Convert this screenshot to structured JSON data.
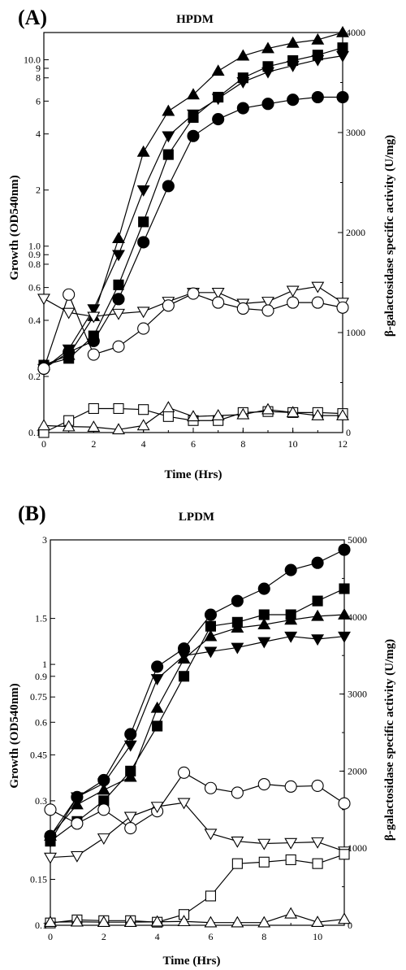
{
  "chart_data": [
    {
      "type": "line",
      "panel_label": "(A)",
      "title": "HPDM",
      "xlabel": "Time (Hrs)",
      "ylabel_left": "Growth (OD540nm)",
      "ylabel_right": "β-galactosidase specific activity (U/mg)",
      "left_scale": "log",
      "xlim": [
        0,
        12
      ],
      "ylim_left": [
        0.1,
        14
      ],
      "ylim_right": [
        0,
        4000
      ],
      "x_ticks": [
        "0",
        "2",
        "4",
        "6",
        "8",
        "10",
        "12"
      ],
      "y_ticks_left": [
        {
          "v": 0.1,
          "label": "0.1"
        },
        {
          "v": 0.2,
          "label": "0.2"
        },
        {
          "v": 0.4,
          "label": "0.4"
        },
        {
          "v": 0.6,
          "label": "0.6"
        },
        {
          "v": 0.8,
          "label": "0.8"
        },
        {
          "v": 0.9,
          "label": "0.9"
        },
        {
          "v": 1.0,
          "label": "1.0"
        },
        {
          "v": 2,
          "label": "2"
        },
        {
          "v": 4,
          "label": "4"
        },
        {
          "v": 6,
          "label": "6"
        },
        {
          "v": 8,
          "label": "8"
        },
        {
          "v": 9,
          "label": "9"
        },
        {
          "v": 10,
          "label": "10.0"
        }
      ],
      "y_ticks_right": [
        "0",
        "1000",
        "2000",
        "3000",
        "4000"
      ],
      "grid": false,
      "series": [
        {
          "marker": "triangle-up",
          "filled": true,
          "axis": "left",
          "x": [
            0,
            1,
            2,
            3,
            4,
            5,
            6,
            7,
            8,
            9,
            10,
            11,
            12
          ],
          "values": [
            0.23,
            0.26,
            0.42,
            1.1,
            3.2,
            5.3,
            6.5,
            8.7,
            10.5,
            11.5,
            12.3,
            12.8,
            14
          ]
        },
        {
          "marker": "square",
          "filled": true,
          "axis": "left",
          "x": [
            0,
            1,
            2,
            3,
            4,
            5,
            6,
            7,
            8,
            9,
            10,
            11,
            12
          ],
          "values": [
            0.23,
            0.25,
            0.33,
            0.62,
            1.35,
            3.1,
            4.9,
            6.3,
            8.0,
            9.2,
            9.9,
            10.6,
            11.6
          ]
        },
        {
          "marker": "triangle-down",
          "filled": true,
          "axis": "left",
          "x": [
            0,
            1,
            2,
            3,
            4,
            5,
            6,
            7,
            8,
            9,
            10,
            11,
            12
          ],
          "values": [
            0.22,
            0.28,
            0.46,
            0.9,
            2.0,
            3.9,
            5.1,
            6.2,
            7.6,
            8.6,
            9.3,
            10.0,
            10.5
          ]
        },
        {
          "marker": "circle",
          "filled": true,
          "axis": "left",
          "x": [
            0,
            1,
            2,
            3,
            4,
            5,
            6,
            7,
            8,
            9,
            10,
            11,
            12
          ],
          "values": [
            0.22,
            0.27,
            0.31,
            0.52,
            1.05,
            2.1,
            3.9,
            4.8,
            5.5,
            5.8,
            6.1,
            6.3,
            6.3
          ]
        },
        {
          "marker": "triangle-down",
          "filled": false,
          "axis": "right",
          "x": [
            0,
            1,
            2,
            3,
            4,
            5,
            6,
            7,
            8,
            9,
            10,
            11,
            12
          ],
          "values": [
            1340,
            1200,
            1160,
            1190,
            1210,
            1310,
            1400,
            1400,
            1290,
            1310,
            1420,
            1460,
            1300
          ]
        },
        {
          "marker": "circle",
          "filled": false,
          "axis": "right",
          "x": [
            0,
            1,
            2,
            3,
            4,
            5,
            6,
            7,
            8,
            9,
            10,
            11,
            12
          ],
          "values": [
            640,
            1380,
            780,
            860,
            1040,
            1270,
            1390,
            1300,
            1240,
            1220,
            1300,
            1300,
            1250
          ]
        },
        {
          "marker": "square",
          "filled": false,
          "axis": "right",
          "x": [
            0,
            1,
            2,
            3,
            4,
            5,
            6,
            7,
            8,
            9,
            10,
            11,
            12
          ],
          "values": [
            0,
            120,
            240,
            240,
            230,
            160,
            120,
            120,
            200,
            210,
            200,
            200,
            190
          ]
        },
        {
          "marker": "triangle-up",
          "filled": false,
          "axis": "right",
          "x": [
            0,
            1,
            2,
            3,
            4,
            5,
            6,
            7,
            8,
            9,
            10,
            11,
            12
          ],
          "values": [
            70,
            60,
            55,
            30,
            70,
            250,
            160,
            170,
            180,
            230,
            200,
            170,
            170
          ]
        }
      ]
    },
    {
      "type": "line",
      "panel_label": "(B)",
      "title": "LPDM",
      "xlabel": "Time (Hrs)",
      "ylabel_left": "Growth (OD540nm)",
      "ylabel_right": "β-galactosidase specific activity (U/mg)",
      "left_scale": "log",
      "xlim": [
        0,
        11
      ],
      "ylim_left": [
        0.1,
        3
      ],
      "ylim_right": [
        0,
        5000
      ],
      "x_ticks": [
        "0",
        "2",
        "4",
        "6",
        "8",
        "10"
      ],
      "y_ticks_left": [
        {
          "v": 0.1,
          "label": "0.1"
        },
        {
          "v": 0.15,
          "label": "0.15"
        },
        {
          "v": 0.3,
          "label": "0.3"
        },
        {
          "v": 0.45,
          "label": "0.45"
        },
        {
          "v": 0.6,
          "label": "0.6"
        },
        {
          "v": 0.75,
          "label": "0.75"
        },
        {
          "v": 0.9,
          "label": "0.9"
        },
        {
          "v": 1.0,
          "label": "1"
        },
        {
          "v": 1.5,
          "label": "1.5"
        },
        {
          "v": 3.0,
          "label": "3"
        }
      ],
      "y_ticks_right": [
        "0",
        "1000",
        "2000",
        "3000",
        "4000",
        "5000"
      ],
      "grid": false,
      "series": [
        {
          "marker": "circle",
          "filled": true,
          "axis": "left",
          "x": [
            0,
            1,
            2,
            3,
            4,
            5,
            6,
            7,
            8,
            9,
            10,
            11
          ],
          "values": [
            0.22,
            0.31,
            0.36,
            0.54,
            0.98,
            1.15,
            1.55,
            1.75,
            1.95,
            2.3,
            2.45,
            2.75
          ]
        },
        {
          "marker": "square",
          "filled": true,
          "axis": "left",
          "x": [
            0,
            1,
            2,
            3,
            4,
            5,
            6,
            7,
            8,
            9,
            10,
            11
          ],
          "values": [
            0.21,
            0.25,
            0.3,
            0.39,
            0.58,
            0.9,
            1.4,
            1.45,
            1.55,
            1.55,
            1.75,
            1.95
          ]
        },
        {
          "marker": "triangle-up",
          "filled": true,
          "axis": "left",
          "x": [
            0,
            1,
            2,
            3,
            4,
            5,
            6,
            7,
            8,
            9,
            10,
            11
          ],
          "values": [
            0.22,
            0.29,
            0.33,
            0.37,
            0.68,
            1.05,
            1.28,
            1.38,
            1.42,
            1.48,
            1.53,
            1.55
          ]
        },
        {
          "marker": "triangle-down",
          "filled": true,
          "axis": "left",
          "x": [
            0,
            1,
            2,
            3,
            4,
            5,
            6,
            7,
            8,
            9,
            10,
            11
          ],
          "values": [
            0.21,
            0.31,
            0.35,
            0.49,
            0.88,
            1.08,
            1.12,
            1.16,
            1.22,
            1.28,
            1.25,
            1.28
          ]
        },
        {
          "marker": "circle",
          "filled": false,
          "axis": "right",
          "x": [
            0,
            1,
            2,
            3,
            4,
            5,
            6,
            7,
            8,
            9,
            10,
            11
          ],
          "values": [
            1500,
            1320,
            1500,
            1260,
            1480,
            1980,
            1780,
            1720,
            1830,
            1800,
            1810,
            1580
          ]
        },
        {
          "marker": "triangle-down",
          "filled": false,
          "axis": "right",
          "x": [
            0,
            1,
            2,
            3,
            4,
            5,
            6,
            7,
            8,
            9,
            10,
            11
          ],
          "values": [
            880,
            900,
            1130,
            1410,
            1540,
            1590,
            1190,
            1090,
            1060,
            1070,
            1080,
            960
          ]
        },
        {
          "marker": "square",
          "filled": false,
          "axis": "right",
          "x": [
            0,
            1,
            2,
            3,
            4,
            5,
            6,
            7,
            8,
            9,
            10,
            11
          ],
          "values": [
            30,
            70,
            60,
            60,
            40,
            140,
            380,
            800,
            820,
            850,
            800,
            920
          ]
        },
        {
          "marker": "triangle-up",
          "filled": false,
          "axis": "right",
          "x": [
            0,
            1,
            2,
            3,
            4,
            5,
            6,
            7,
            8,
            9,
            10,
            11
          ],
          "values": [
            40,
            45,
            40,
            40,
            45,
            50,
            35,
            35,
            35,
            150,
            40,
            80
          ]
        }
      ]
    }
  ]
}
